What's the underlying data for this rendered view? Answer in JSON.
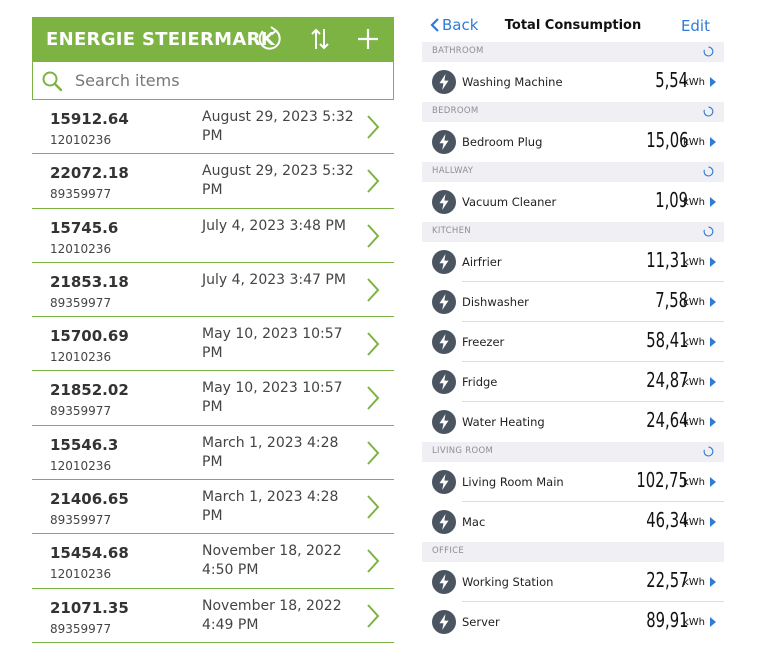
{
  "left": {
    "header": {
      "title": "ENERGIE STEIERMARK",
      "bg": "#7cb342"
    },
    "search": {
      "placeholder": "Search items"
    },
    "rows": [
      {
        "amount": "15912.64",
        "meter": "12010236",
        "date": "August 29, 2023 5:32 PM"
      },
      {
        "amount": "22072.18",
        "meter": "89359977",
        "date": "August 29, 2023 5:32 PM"
      },
      {
        "amount": "15745.6",
        "meter": "12010236",
        "date": "July 4, 2023 3:48 PM"
      },
      {
        "amount": "21853.18",
        "meter": "89359977",
        "date": "July 4, 2023 3:47 PM"
      },
      {
        "amount": "15700.69",
        "meter": "12010236",
        "date": "May 10, 2023 10:57 PM"
      },
      {
        "amount": "21852.02",
        "meter": "89359977",
        "date": "May 10, 2023 10:57 PM"
      },
      {
        "amount": "15546.3",
        "meter": "12010236",
        "date": "March 1, 2023 4:28 PM"
      },
      {
        "amount": "21406.65",
        "meter": "89359977",
        "date": "March 1, 2023 4:28 PM"
      },
      {
        "amount": "15454.68",
        "meter": "12010236",
        "date": "November 18, 2022 4:50 PM"
      },
      {
        "amount": "21071.35",
        "meter": "89359977",
        "date": "November 18, 2022 4:49 PM"
      }
    ]
  },
  "right": {
    "nav": {
      "back": "Back",
      "title": "Total Consumption",
      "edit": "Edit"
    },
    "unit": "kWh",
    "sections": [
      {
        "name": "BATHROOM",
        "spinner": true,
        "devices": [
          {
            "name": "Washing Machine",
            "value": "5,54"
          }
        ]
      },
      {
        "name": "BEDROOM",
        "spinner": true,
        "devices": [
          {
            "name": "Bedroom Plug",
            "value": "15,06"
          }
        ]
      },
      {
        "name": "HALLWAY",
        "spinner": true,
        "devices": [
          {
            "name": "Vacuum Cleaner",
            "value": "1,09"
          }
        ]
      },
      {
        "name": "KITCHEN",
        "spinner": true,
        "devices": [
          {
            "name": "Airfrier",
            "value": "11,31"
          },
          {
            "name": "Dishwasher",
            "value": "7,58"
          },
          {
            "name": "Freezer",
            "value": "58,41"
          },
          {
            "name": "Fridge",
            "value": "24,87"
          },
          {
            "name": "Water Heating",
            "value": "24,64"
          }
        ]
      },
      {
        "name": "LIVING ROOM",
        "spinner": true,
        "devices": [
          {
            "name": "Living Room  Main",
            "value": "102,75"
          },
          {
            "name": "Mac",
            "value": "46,34"
          }
        ]
      },
      {
        "name": "OFFICE",
        "spinner": false,
        "devices": [
          {
            "name": "Working Station",
            "value": "22,57"
          },
          {
            "name": "Server",
            "value": "89,91"
          }
        ]
      }
    ],
    "accent": "#2f7bd8"
  }
}
